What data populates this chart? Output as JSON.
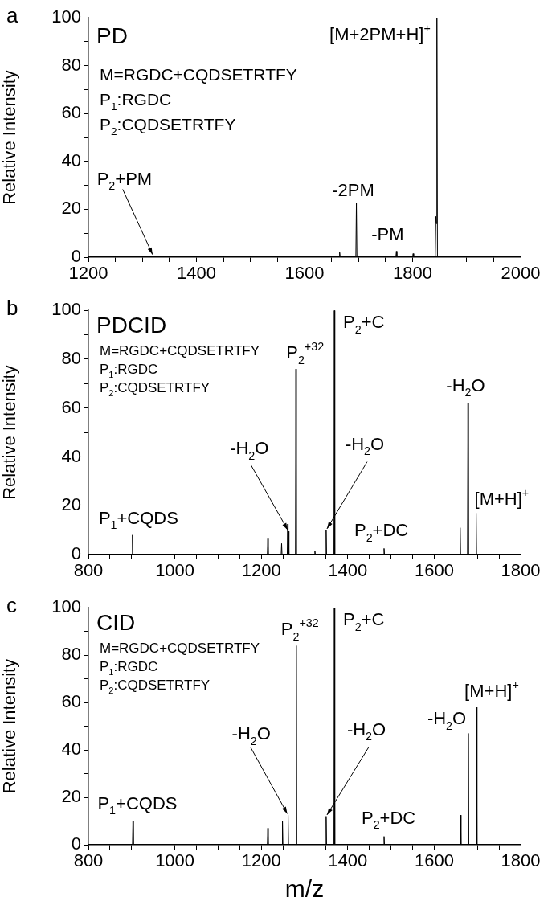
{
  "chart_data": [
    {
      "type": "line",
      "title": "a",
      "subtitle": "PD",
      "ylabel": "Relative Intensity",
      "xlim": [
        1200,
        2000
      ],
      "ylim": [
        0,
        100
      ],
      "xticks": [
        1200,
        {
          "value": 1250,
          "label": null
        },
        {
          "value": 1300,
          "label": null
        },
        {
          "value": 1350,
          "label": null
        },
        1400,
        {
          "value": 1450,
          "label": null
        },
        {
          "value": 1500,
          "label": null
        },
        {
          "value": 1550,
          "label": null
        },
        1600,
        {
          "value": 1650,
          "label": null
        },
        {
          "value": 1700,
          "label": null
        },
        {
          "value": 1750,
          "label": null
        },
        1800,
        {
          "value": 1850,
          "label": null
        },
        {
          "value": 1900,
          "label": null
        },
        {
          "value": 1950,
          "label": null
        },
        2000
      ],
      "yticks": [
        0,
        {
          "value": 10,
          "label": null
        },
        20,
        {
          "value": 30,
          "label": null
        },
        40,
        {
          "value": 50,
          "label": null
        },
        60,
        {
          "value": 70,
          "label": null
        },
        80,
        {
          "value": 90,
          "label": null
        },
        100
      ],
      "grid": false,
      "legend": false,
      "series": [
        {
          "color": "#000000",
          "x": [
            1200,
            1319,
            1320,
            1321,
            1664,
            1665,
            1666,
            1695,
            1696,
            1697,
            1769,
            1770,
            1771,
            1800,
            1801,
            1802,
            1842,
            1843,
            1844,
            1845,
            1846,
            2000
          ],
          "values": [
            0,
            0,
            0.5,
            0,
            0,
            2,
            0,
            0,
            22.5,
            0,
            0,
            2.5,
            0,
            0,
            1.5,
            0,
            0,
            17,
            14,
            100,
            0,
            0
          ]
        }
      ],
      "annotations": [
        "M=RGDC+CQDSETRTFY",
        "P$_{1}$:RGDC",
        "P$_{2}$:CQDSETRTFY",
        {
          "text": "[M+2PM+H]$^{+}$",
          "x": 1845,
          "y": 100
        },
        {
          "text": "-2PM",
          "x": 1696,
          "y": 22.5
        },
        {
          "text": "-PM",
          "x": 1770,
          "y": 2.5
        },
        {
          "text": "P$_{2}$+PM",
          "x": 1320,
          "y": 0.5
        }
      ]
    },
    {
      "type": "line",
      "title": "b",
      "subtitle": "PDCID",
      "ylabel": "Relative Intensity",
      "xlim": [
        800,
        1800
      ],
      "ylim": [
        0,
        100
      ],
      "xticks": [
        800,
        {
          "value": 850,
          "label": null
        },
        {
          "value": 900,
          "label": null
        },
        {
          "value": 950,
          "label": null
        },
        1000,
        {
          "value": 1050,
          "label": null
        },
        {
          "value": 1100,
          "label": null
        },
        {
          "value": 1150,
          "label": null
        },
        1200,
        {
          "value": 1250,
          "label": null
        },
        {
          "value": 1300,
          "label": null
        },
        {
          "value": 1350,
          "label": null
        },
        1400,
        {
          "value": 1450,
          "label": null
        },
        {
          "value": 1500,
          "label": null
        },
        {
          "value": 1550,
          "label": null
        },
        1600,
        {
          "value": 1650,
          "label": null
        },
        {
          "value": 1700,
          "label": null
        },
        {
          "value": 1750,
          "label": null
        },
        1800
      ],
      "yticks": [
        0,
        {
          "value": 10,
          "label": null
        },
        20,
        {
          "value": 30,
          "label": null
        },
        40,
        {
          "value": 50,
          "label": null
        },
        60,
        {
          "value": 70,
          "label": null
        },
        80,
        {
          "value": 90,
          "label": null
        },
        100
      ],
      "grid": false,
      "legend": false,
      "series": [
        {
          "color": "#000000",
          "x": [
            800,
            901,
            902,
            903,
            1214,
            1215,
            1216,
            1246,
            1247,
            1248,
            1260,
            1261,
            1262,
            1263,
            1264,
            1279,
            1280,
            1281,
            1323,
            1324,
            1325,
            1349,
            1350,
            1351,
            1368,
            1369,
            1370,
            1483,
            1484,
            1485,
            1659,
            1660,
            1661,
            1677,
            1678,
            1679,
            1696,
            1697,
            1698,
            1800
          ],
          "values": [
            0,
            0,
            8,
            0,
            0,
            6.5,
            0,
            0,
            4.5,
            0,
            0,
            12.5,
            0,
            9.5,
            0,
            0,
            76,
            0,
            0,
            1.5,
            0,
            0,
            10,
            0,
            0,
            100,
            0,
            0,
            2.5,
            0,
            0,
            11,
            0,
            0,
            62,
            0,
            0,
            17,
            0,
            0
          ]
        }
      ],
      "annotations": [
        "M=RGDC+CQDSETRTFY",
        "P$_{1}$:RGDC",
        "P$_{2}$:CQDSETRTFY",
        {
          "text": "P$_{2}$+C",
          "x": 1369,
          "y": 100
        },
        {
          "text": "P$_{2}$$^{+32}$",
          "x": 1280,
          "y": 76
        },
        {
          "text": "-H$_{2}$O",
          "x": 1263,
          "y": 9.5
        },
        {
          "text": "-H$_{2}$O",
          "x": 1350,
          "y": 10
        },
        {
          "text": "P$_{1}$+CQDS",
          "x": 902,
          "y": 8
        },
        {
          "text": "P$_{2}$+DC",
          "x": 1484,
          "y": 2.5
        },
        {
          "text": "-H$_{2}$O",
          "x": 1678,
          "y": 62
        },
        {
          "text": "[M+H]$^{+}$",
          "x": 1697,
          "y": 17
        }
      ]
    },
    {
      "type": "line",
      "title": "c",
      "subtitle": "CID",
      "xlabel": "m/z",
      "ylabel": "Relative Intensity",
      "xlim": [
        800,
        1800
      ],
      "ylim": [
        0,
        100
      ],
      "xticks": [
        800,
        {
          "value": 850,
          "label": null
        },
        {
          "value": 900,
          "label": null
        },
        {
          "value": 950,
          "label": null
        },
        1000,
        {
          "value": 1050,
          "label": null
        },
        {
          "value": 1100,
          "label": null
        },
        {
          "value": 1150,
          "label": null
        },
        1200,
        {
          "value": 1250,
          "label": null
        },
        {
          "value": 1300,
          "label": null
        },
        {
          "value": 1350,
          "label": null
        },
        1400,
        {
          "value": 1450,
          "label": null
        },
        {
          "value": 1500,
          "label": null
        },
        {
          "value": 1550,
          "label": null
        },
        1600,
        {
          "value": 1650,
          "label": null
        },
        {
          "value": 1700,
          "label": null
        },
        {
          "value": 1750,
          "label": null
        },
        1800
      ],
      "yticks": [
        0,
        {
          "value": 10,
          "label": null
        },
        20,
        {
          "value": 30,
          "label": null
        },
        40,
        {
          "value": 50,
          "label": null
        },
        60,
        {
          "value": 70,
          "label": null
        },
        80,
        {
          "value": 90,
          "label": null
        },
        100
      ],
      "grid": false,
      "legend": false,
      "series": [
        {
          "color": "#000000",
          "x": [
            800,
            902,
            903,
            904,
            1214,
            1215,
            1216,
            1248,
            1249,
            1250,
            1261,
            1262,
            1263,
            1280,
            1281,
            1282,
            1349,
            1350,
            1351,
            1368,
            1369,
            1370,
            1483,
            1484,
            1485,
            1660,
            1661,
            1662,
            1678,
            1679,
            1680,
            1697,
            1698,
            1699,
            1800
          ],
          "values": [
            0,
            0,
            10,
            0,
            0,
            7,
            0,
            0,
            10,
            0,
            0,
            12.5,
            0,
            0,
            84,
            0,
            0,
            12,
            0,
            0,
            100,
            0,
            0,
            3.5,
            0,
            0,
            12.5,
            0,
            0,
            47,
            0,
            0,
            58,
            0,
            0
          ]
        }
      ],
      "annotations": [
        "M=RGDC+CQDSETRTFY",
        "P$_{1}$:RGDC",
        "P$_{2}$:CQDSETRTFY",
        {
          "text": "P$_{2}$+C",
          "x": 1369,
          "y": 100
        },
        {
          "text": "P$_{2}$$^{+32}$",
          "x": 1281,
          "y": 84
        },
        {
          "text": "-H$_{2}$O",
          "x": 1262,
          "y": 12.5
        },
        {
          "text": "-H$_{2}$O",
          "x": 1350,
          "y": 12
        },
        {
          "text": "P$_{1}$+CQDS",
          "x": 903,
          "y": 10
        },
        {
          "text": "P$_{2}$+DC",
          "x": 1484,
          "y": 3.5
        },
        {
          "text": "-H$_{2}$O",
          "x": 1679,
          "y": 47
        },
        {
          "text": "[M+H]$^{+}$",
          "x": 1698,
          "y": 58
        }
      ]
    }
  ]
}
